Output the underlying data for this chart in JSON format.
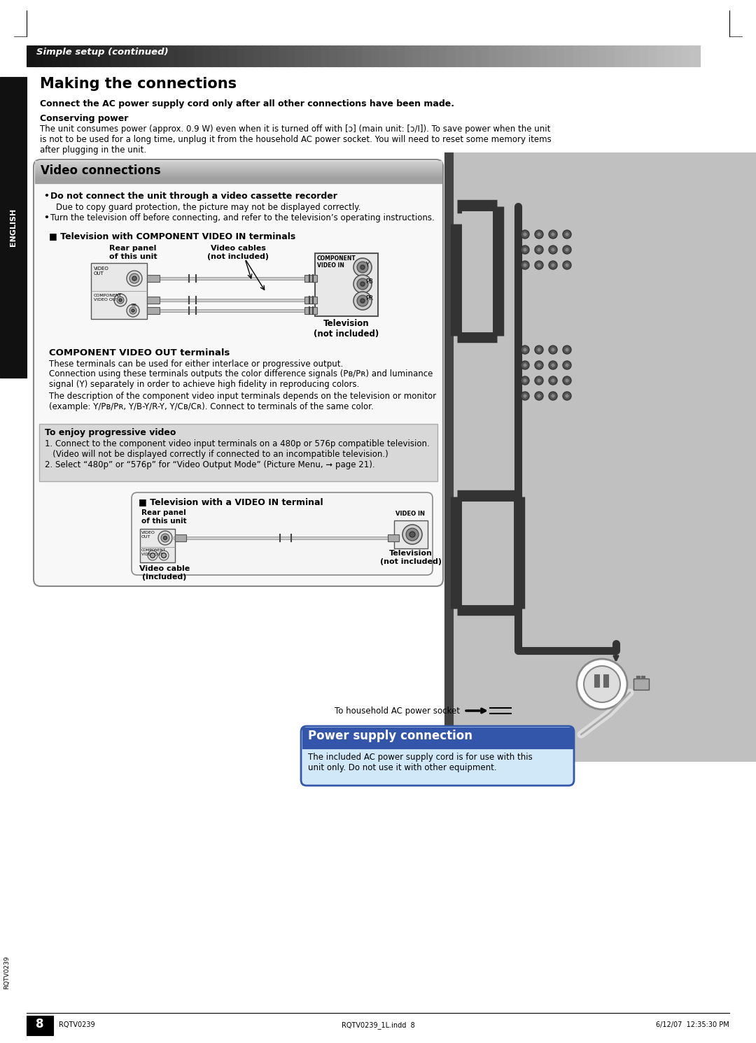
{
  "page_bg": "#ffffff",
  "header_bg_left": "#1a1a1a",
  "header_bg_right": "#555555",
  "header_text": "Simple setup (continued)",
  "header_text_color": "#ffffff",
  "title": "Making the connections",
  "subtitle_bold": "Connect the AC power supply cord only after all other connections have been made.",
  "conserving_title": "Conserving power",
  "conserving_text": "The unit consumes power (approx. 0.9 W) even when it is turned off with [ɔ] (main unit: [ɔ/I]). To save power when the unit\nis not to be used for a long time, unplug it from the household AC power socket. You will need to reset some memory items\nafter plugging in the unit.",
  "video_section_title": "Video connections",
  "bullet1_bold": "Do not connect the unit through a video cassette recorder",
  "bullet1_text": "Due to copy guard protection, the picture may not be displayed correctly.",
  "bullet2_text": "Turn the television off before connecting, and refer to the television’s operating instructions.",
  "comp_title": "■ Television with COMPONENT VIDEO IN terminals",
  "rear_panel_label1": "Rear panel\nof this unit",
  "video_cables_label": "Video cables\n(not included)",
  "television_label1": "Television\n(not included)",
  "comp_out_title": "COMPONENT VIDEO OUT terminals",
  "comp_out_text1": "These terminals can be used for either interlace or progressive output.",
  "comp_out_text2": "Connection using these terminals outputs the color difference signals (Pʙ/Pʀ) and luminance\nsignal (Y) separately in order to achieve high fidelity in reproducing colors.",
  "comp_out_text3": "The description of the component video input terminals depends on the television or monitor\n(example: Y/Pʙ/Pʀ, Y/B-Y/R-Y, Y/Cʙ/Cʀ). Connect to terminals of the same color.",
  "progressive_title": "To enjoy progressive video",
  "progressive_text1": "1. Connect to the component video input terminals on a 480p or 576p compatible television.",
  "progressive_text2": "   (Video will not be displayed correctly if connected to an incompatible television.)",
  "progressive_text3": "2. Select “480p” or “576p” for “Video Output Mode” (Picture Menu, ➞ page 21).",
  "video_in_title": "■ Television with a VIDEO IN terminal",
  "rear_panel_label2": "Rear panel\nof this unit",
  "video_cable_label": "Video cable\n(included)",
  "television_label2": "Television\n(not included)",
  "video_in_label": "VIDEO IN",
  "power_section_title": "Power supply connection",
  "power_text": "The included AC power supply cord is for use with this\nunit only. Do not use it with other equipment.",
  "to_ac_text": "To household AC power socket",
  "english_text": "ENGLISH",
  "page_number": "8",
  "footer_left": "RQTV0239",
  "footer_right": "6/12/07  12:35:30 PM",
  "footer_file": "RQTV0239_1L.indd  8"
}
